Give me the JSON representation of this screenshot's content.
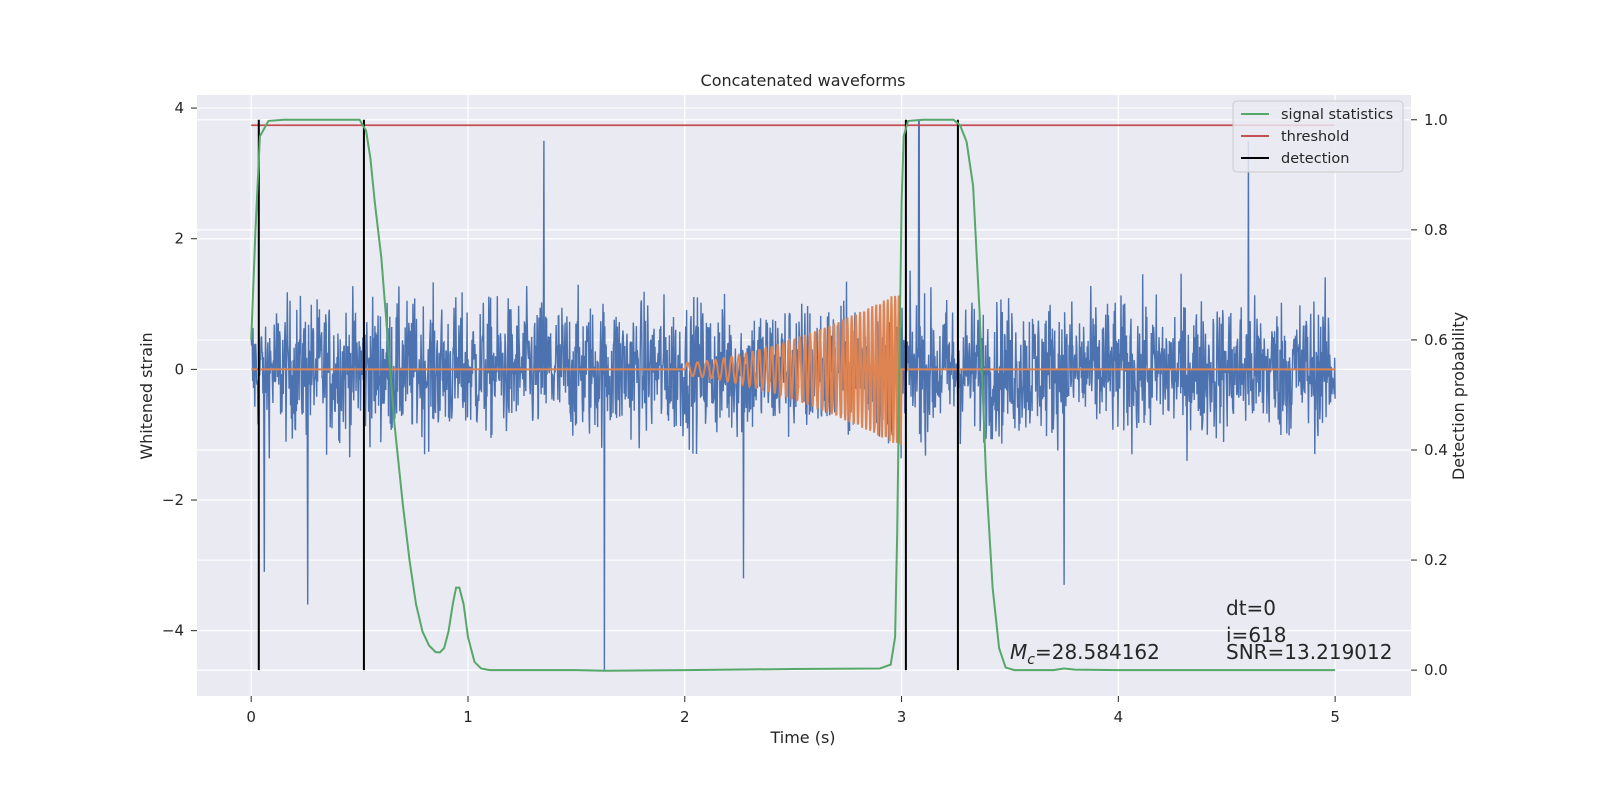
{
  "chart_data": {
    "type": "line",
    "title": "Concatenated waveforms",
    "xlabel": "Time (s)",
    "ylabel": "Whitened strain",
    "y2label": "Detection probability",
    "xlim": [
      -0.25,
      5.35
    ],
    "ylim": [
      -5.0,
      4.2
    ],
    "y2lim": [
      -0.047,
      1.045
    ],
    "x_ticks": [
      0,
      1,
      2,
      3,
      4,
      5
    ],
    "y_ticks": [
      -4,
      -2,
      0,
      2,
      4
    ],
    "y2_ticks": [
      0.0,
      0.2,
      0.4,
      0.6,
      0.8,
      1.0
    ],
    "x_tick_labels": [
      "0",
      "1",
      "2",
      "3",
      "4",
      "5"
    ],
    "y_tick_labels": [
      "−4",
      "−2",
      "0",
      "2",
      "4"
    ],
    "y2_tick_labels": [
      "0.0",
      "0.2",
      "0.4",
      "0.6",
      "0.8",
      "1.0"
    ],
    "grid": true,
    "legend_position": "top-right",
    "colors": {
      "strain": "#4c72b0",
      "template": "#dd8452",
      "signal_statistics": "#55a868",
      "threshold": "#c44e52",
      "detection": "#000000",
      "background": "#eaeaf2"
    },
    "series": [
      {
        "name": "whitened strain",
        "axis": "left",
        "x_range": [
          0,
          5
        ],
        "typical_amplitude": [
          -1.5,
          2.0
        ],
        "extremes": [
          {
            "x": 1.63,
            "y": -4.6
          },
          {
            "x": 1.35,
            "y": 3.5
          },
          {
            "x": 0.26,
            "y": -3.6
          },
          {
            "x": 3.08,
            "y": 3.8
          },
          {
            "x": 3.75,
            "y": -3.3
          },
          {
            "x": 4.6,
            "y": 3.5
          },
          {
            "x": 0.06,
            "y": -3.1
          },
          {
            "x": 2.27,
            "y": -3.2
          }
        ]
      },
      {
        "name": "template",
        "axis": "left",
        "x_range": [
          0,
          5
        ],
        "chirp_start": 2.0,
        "chirp_end": 3.0,
        "amp_start": 0.1,
        "amp_end": 1.2,
        "freq_start": 20,
        "freq_end": 60
      },
      {
        "name": "signal statistics",
        "axis": "right",
        "points": [
          [
            0.0,
            0.6
          ],
          [
            0.02,
            0.8
          ],
          [
            0.04,
            0.97
          ],
          [
            0.08,
            0.998
          ],
          [
            0.15,
            1.0
          ],
          [
            0.3,
            1.0
          ],
          [
            0.5,
            1.0
          ],
          [
            0.53,
            0.98
          ],
          [
            0.55,
            0.93
          ],
          [
            0.57,
            0.85
          ],
          [
            0.6,
            0.75
          ],
          [
            0.63,
            0.6
          ],
          [
            0.66,
            0.45
          ],
          [
            0.7,
            0.3
          ],
          [
            0.73,
            0.2
          ],
          [
            0.76,
            0.12
          ],
          [
            0.79,
            0.07
          ],
          [
            0.82,
            0.045
          ],
          [
            0.85,
            0.033
          ],
          [
            0.87,
            0.032
          ],
          [
            0.89,
            0.04
          ],
          [
            0.91,
            0.07
          ],
          [
            0.93,
            0.12
          ],
          [
            0.945,
            0.15
          ],
          [
            0.96,
            0.15
          ],
          [
            0.98,
            0.12
          ],
          [
            1.0,
            0.06
          ],
          [
            1.03,
            0.015
          ],
          [
            1.06,
            0.003
          ],
          [
            1.1,
            0.0
          ],
          [
            1.5,
            0.0
          ],
          [
            1.63,
            -0.001
          ],
          [
            2.0,
            0.0
          ],
          [
            2.5,
            0.002
          ],
          [
            2.9,
            0.003
          ],
          [
            2.95,
            0.01
          ],
          [
            2.97,
            0.06
          ],
          [
            2.98,
            0.25
          ],
          [
            2.99,
            0.55
          ],
          [
            3.0,
            0.85
          ],
          [
            3.01,
            0.97
          ],
          [
            3.03,
            0.998
          ],
          [
            3.1,
            1.0
          ],
          [
            3.24,
            1.0
          ],
          [
            3.27,
            0.99
          ],
          [
            3.3,
            0.96
          ],
          [
            3.33,
            0.88
          ],
          [
            3.36,
            0.65
          ],
          [
            3.39,
            0.35
          ],
          [
            3.42,
            0.15
          ],
          [
            3.45,
            0.04
          ],
          [
            3.48,
            0.005
          ],
          [
            3.52,
            0.0
          ],
          [
            3.7,
            0.0
          ],
          [
            3.75,
            0.003
          ],
          [
            3.8,
            0.001
          ],
          [
            4.0,
            0.0
          ],
          [
            4.5,
            0.0
          ],
          [
            5.0,
            0.0
          ]
        ]
      },
      {
        "name": "threshold",
        "axis": "right",
        "x": [
          0,
          5
        ],
        "y": [
          0.99,
          0.99
        ]
      },
      {
        "name": "detection",
        "axis": "right",
        "vlines_x": [
          0.035,
          0.52,
          3.02,
          3.26
        ],
        "y_span": [
          0.0,
          1.0
        ]
      }
    ],
    "legend": [
      "signal statistics",
      "threshold",
      "detection"
    ],
    "annotations": {
      "dt": "dt=0",
      "i": "i=618",
      "snr": "SNR=13.219012",
      "mc_symbol": "M",
      "mc_sub": "c",
      "mc_value": "=28.584162"
    }
  }
}
